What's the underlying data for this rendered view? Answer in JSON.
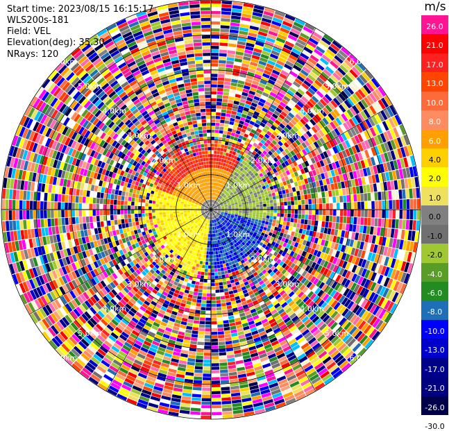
{
  "header": {
    "start_time": "Start time: 2023/08/15 16:15:17",
    "instrument": "WLS200s-181",
    "field": "Field: VEL",
    "elevation": "Elevation(deg): 35.30",
    "nrays": "NRays: 120"
  },
  "colorbar": {
    "unit": "m/s",
    "ticks": [
      "26.0",
      "21.0",
      "17.0",
      "13.0",
      "10.0",
      "8.0",
      "6.0",
      "4.0",
      "2.0",
      "1.0",
      "0.0",
      "-1.0",
      "-2.0",
      "-4.0",
      "-6.0",
      "-8.0",
      "-10.0",
      "-13.0",
      "-17.0",
      "-21.0",
      "-26.0",
      "-30.0"
    ],
    "colors": [
      "#ff1493",
      "#ff0000",
      "#ff2020",
      "#ff4500",
      "#ff6a3a",
      "#ff8c60",
      "#ffa000",
      "#ffd000",
      "#ffff00",
      "#f0e060",
      "#808080",
      "#707070",
      "#a0c832",
      "#5a9c28",
      "#228b22",
      "#1f6fb8",
      "#0000ff",
      "#0000cd",
      "#00008b",
      "#000080",
      "#00004a"
    ],
    "label_colors": [
      "#ffffff",
      "#ffffff",
      "#ffffff",
      "#ffffff",
      "#ffffff",
      "#ffffff",
      "#ffffff",
      "#000000",
      "#000000",
      "#000000",
      "#000000",
      "#000000",
      "#000000",
      "#ffffff",
      "#ffffff",
      "#ffffff",
      "#ffffff",
      "#ffffff",
      "#ffffff",
      "#ffffff",
      "#ffffff",
      "#000000"
    ]
  },
  "chart_data": {
    "type": "heatmap",
    "projection": "polar PPI",
    "field": "VEL",
    "unit": "m/s",
    "nrays": 120,
    "range_rings_km": [
      1.0,
      2.0,
      3.0,
      4.0,
      5.0,
      6.0
    ],
    "range_ring_labels": [
      "1.0km",
      "2.0km",
      "3.0km",
      "4.0km",
      "5.0km",
      "6.0km"
    ],
    "value_range": [
      -30.0,
      26.0
    ],
    "near_field_km": 1.5,
    "rings_km_range": [
      0.0,
      6.0
    ]
  }
}
